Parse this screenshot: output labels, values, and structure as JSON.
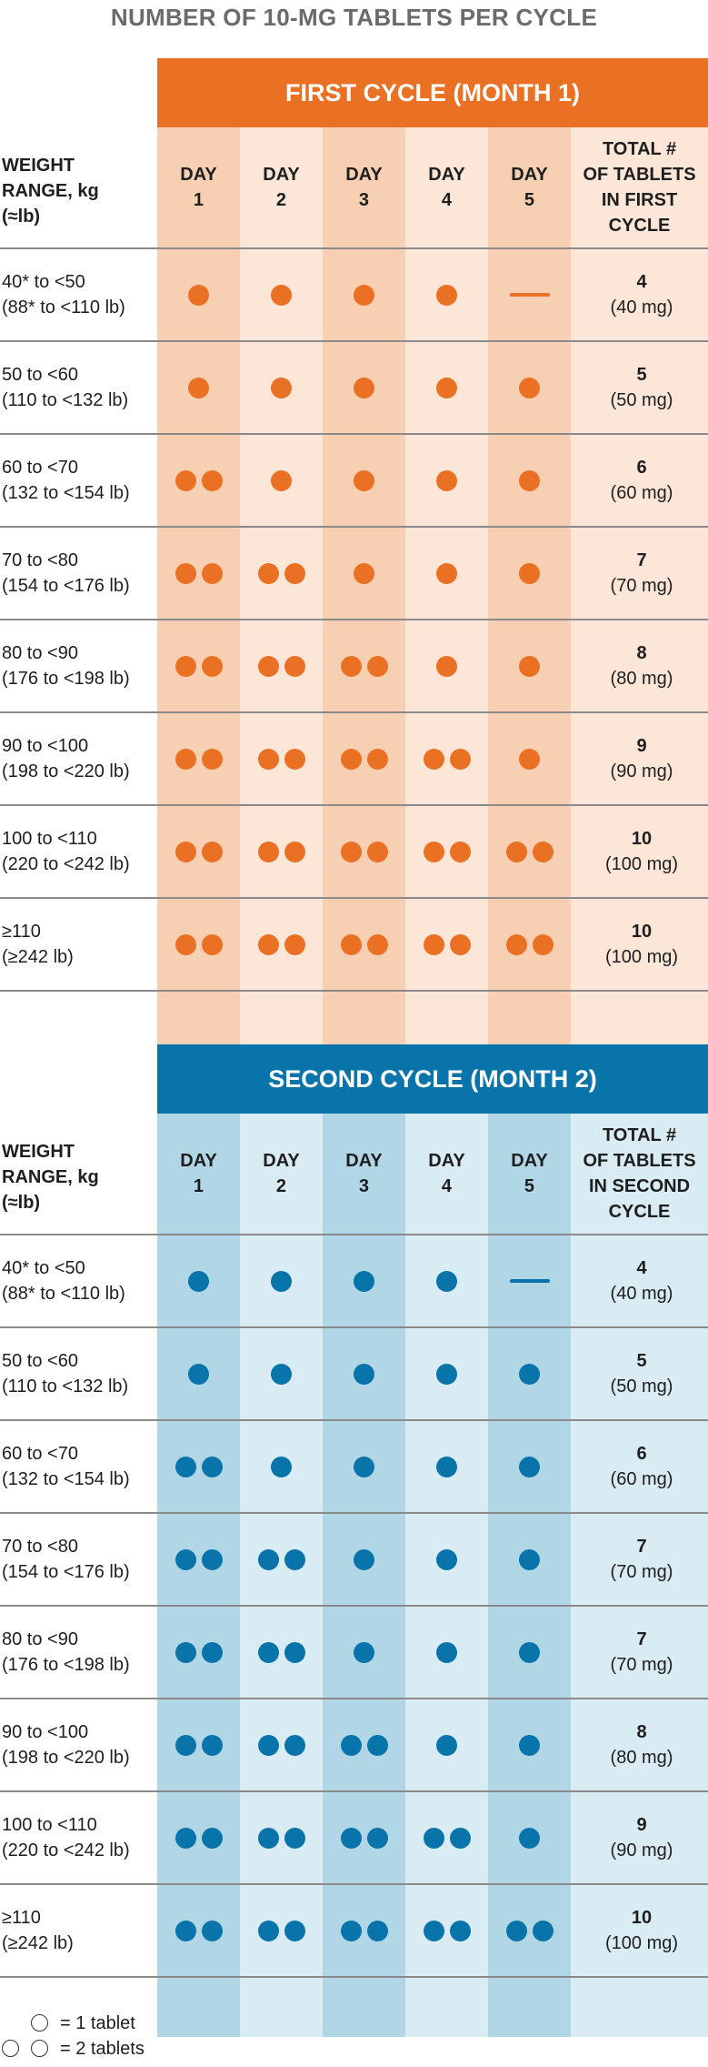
{
  "page_title": "NUMBER OF 10-MG TABLETS PER CYCLE",
  "tables": [
    {
      "heading": "FIRST CYCLE (MONTH 1)",
      "weight_header": [
        "WEIGHT",
        "RANGE, kg",
        "(≈lb)"
      ],
      "day_headers": [
        [
          "DAY",
          "1"
        ],
        [
          "DAY",
          "2"
        ],
        [
          "DAY",
          "3"
        ],
        [
          "DAY",
          "4"
        ],
        [
          "DAY",
          "5"
        ]
      ],
      "total_header": [
        "TOTAL #",
        "OF TABLETS",
        "IN FIRST",
        "CYCLE"
      ],
      "rows": [
        {
          "kg": "40* to <50",
          "lb": "(88* to <110 lb)",
          "tablets": [
            1,
            1,
            1,
            1,
            0
          ],
          "total": "4",
          "mg": "(40 mg)"
        },
        {
          "kg": "50 to <60",
          "lb": "(110 to <132 lb)",
          "tablets": [
            1,
            1,
            1,
            1,
            1
          ],
          "total": "5",
          "mg": "(50 mg)"
        },
        {
          "kg": "60 to <70",
          "lb": "(132 to <154 lb)",
          "tablets": [
            2,
            1,
            1,
            1,
            1
          ],
          "total": "6",
          "mg": "(60 mg)"
        },
        {
          "kg": "70 to <80",
          "lb": "(154 to <176 lb)",
          "tablets": [
            2,
            2,
            1,
            1,
            1
          ],
          "total": "7",
          "mg": "(70 mg)"
        },
        {
          "kg": "80 to <90",
          "lb": "(176 to <198 lb)",
          "tablets": [
            2,
            2,
            2,
            1,
            1
          ],
          "total": "8",
          "mg": "(80 mg)"
        },
        {
          "kg": "90 to <100",
          "lb": "(198 to <220 lb)",
          "tablets": [
            2,
            2,
            2,
            2,
            1
          ],
          "total": "9",
          "mg": "(90 mg)"
        },
        {
          "kg": "100 to <110",
          "lb": "(220 to <242 lb)",
          "tablets": [
            2,
            2,
            2,
            2,
            2
          ],
          "total": "10",
          "mg": "(100 mg)"
        },
        {
          "kg": "≥110",
          "lb": "(≥242 lb)",
          "tablets": [
            2,
            2,
            2,
            2,
            2
          ],
          "total": "10",
          "mg": "(100 mg)"
        }
      ]
    },
    {
      "heading": "SECOND CYCLE (MONTH 2)",
      "weight_header": [
        "WEIGHT",
        "RANGE, kg",
        "(≈lb)"
      ],
      "day_headers": [
        [
          "DAY",
          "1"
        ],
        [
          "DAY",
          "2"
        ],
        [
          "DAY",
          "3"
        ],
        [
          "DAY",
          "4"
        ],
        [
          "DAY",
          "5"
        ]
      ],
      "total_header": [
        "TOTAL #",
        "OF TABLETS",
        "IN SECOND",
        "CYCLE"
      ],
      "rows": [
        {
          "kg": "40* to <50",
          "lb": "(88* to <110 lb)",
          "tablets": [
            1,
            1,
            1,
            1,
            0
          ],
          "total": "4",
          "mg": "(40 mg)"
        },
        {
          "kg": "50 to <60",
          "lb": "(110 to <132 lb)",
          "tablets": [
            1,
            1,
            1,
            1,
            1
          ],
          "total": "5",
          "mg": "(50 mg)"
        },
        {
          "kg": "60 to <70",
          "lb": "(132 to <154 lb)",
          "tablets": [
            2,
            1,
            1,
            1,
            1
          ],
          "total": "6",
          "mg": "(60 mg)"
        },
        {
          "kg": "70 to <80",
          "lb": "(154 to <176 lb)",
          "tablets": [
            2,
            2,
            1,
            1,
            1
          ],
          "total": "7",
          "mg": "(70 mg)"
        },
        {
          "kg": "80 to <90",
          "lb": "(176 to <198 lb)",
          "tablets": [
            2,
            2,
            1,
            1,
            1
          ],
          "total": "7",
          "mg": "(70 mg)"
        },
        {
          "kg": "90 to <100",
          "lb": "(198 to <220 lb)",
          "tablets": [
            2,
            2,
            2,
            1,
            1
          ],
          "total": "8",
          "mg": "(80 mg)"
        },
        {
          "kg": "100 to <110",
          "lb": "(220 to <242 lb)",
          "tablets": [
            2,
            2,
            2,
            2,
            1
          ],
          "total": "9",
          "mg": "(90 mg)"
        },
        {
          "kg": "≥110",
          "lb": "(≥242 lb)",
          "tablets": [
            2,
            2,
            2,
            2,
            2
          ],
          "total": "10",
          "mg": "(100 mg)"
        }
      ]
    }
  ],
  "legend": {
    "one_tablet": "= 1 tablet",
    "two_tablets": "= 2 tablets"
  },
  "colors": {
    "first_cycle_accent": "#ea7024",
    "second_cycle_accent": "#0874aa",
    "title_gray": "#6b6b6b"
  }
}
